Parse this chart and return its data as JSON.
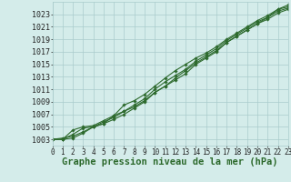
{
  "background_color": "#d4ecea",
  "grid_color": "#aacccc",
  "line_color": "#2d6a2d",
  "xlabel": "Graphe pression niveau de la mer (hPa)",
  "xlabel_fontsize": 7.5,
  "xtick_fontsize": 5.5,
  "ytick_fontsize": 6.0,
  "xmin": 0,
  "xmax": 23,
  "ymin": 1002,
  "ymax": 1025,
  "yticks": [
    1003,
    1005,
    1007,
    1009,
    1011,
    1013,
    1015,
    1017,
    1019,
    1021,
    1023
  ],
  "series": [
    [
      1003.0,
      1003.2,
      1003.5,
      1004.2,
      1005.0,
      1005.5,
      1006.2,
      1007.0,
      1008.0,
      1009.0,
      1010.5,
      1011.5,
      1012.5,
      1013.5,
      1015.0,
      1016.0,
      1017.0,
      1018.5,
      1019.5,
      1020.5,
      1021.5,
      1022.5,
      1023.5,
      1024.0
    ],
    [
      1003.0,
      1003.0,
      1003.8,
      1004.8,
      1005.0,
      1005.8,
      1006.5,
      1007.5,
      1008.5,
      1009.5,
      1011.0,
      1012.2,
      1013.2,
      1014.2,
      1015.5,
      1016.5,
      1017.5,
      1018.8,
      1019.8,
      1020.8,
      1021.8,
      1022.5,
      1023.8,
      1024.2
    ],
    [
      1003.0,
      1003.0,
      1004.5,
      1005.0,
      1005.2,
      1006.0,
      1006.8,
      1008.5,
      1009.2,
      1010.2,
      1011.5,
      1012.8,
      1014.0,
      1015.0,
      1016.0,
      1016.8,
      1017.8,
      1019.0,
      1020.0,
      1021.0,
      1022.0,
      1022.8,
      1023.8,
      1024.5
    ],
    [
      1003.0,
      1003.0,
      1003.2,
      1004.0,
      1005.0,
      1005.5,
      1006.8,
      1007.5,
      1008.2,
      1009.2,
      1010.5,
      1011.5,
      1012.8,
      1014.0,
      1015.2,
      1016.2,
      1017.2,
      1018.5,
      1019.5,
      1020.5,
      1021.5,
      1022.2,
      1023.2,
      1023.8
    ]
  ],
  "marker": "D",
  "marker_size": 1.8,
  "linewidth": 0.8
}
